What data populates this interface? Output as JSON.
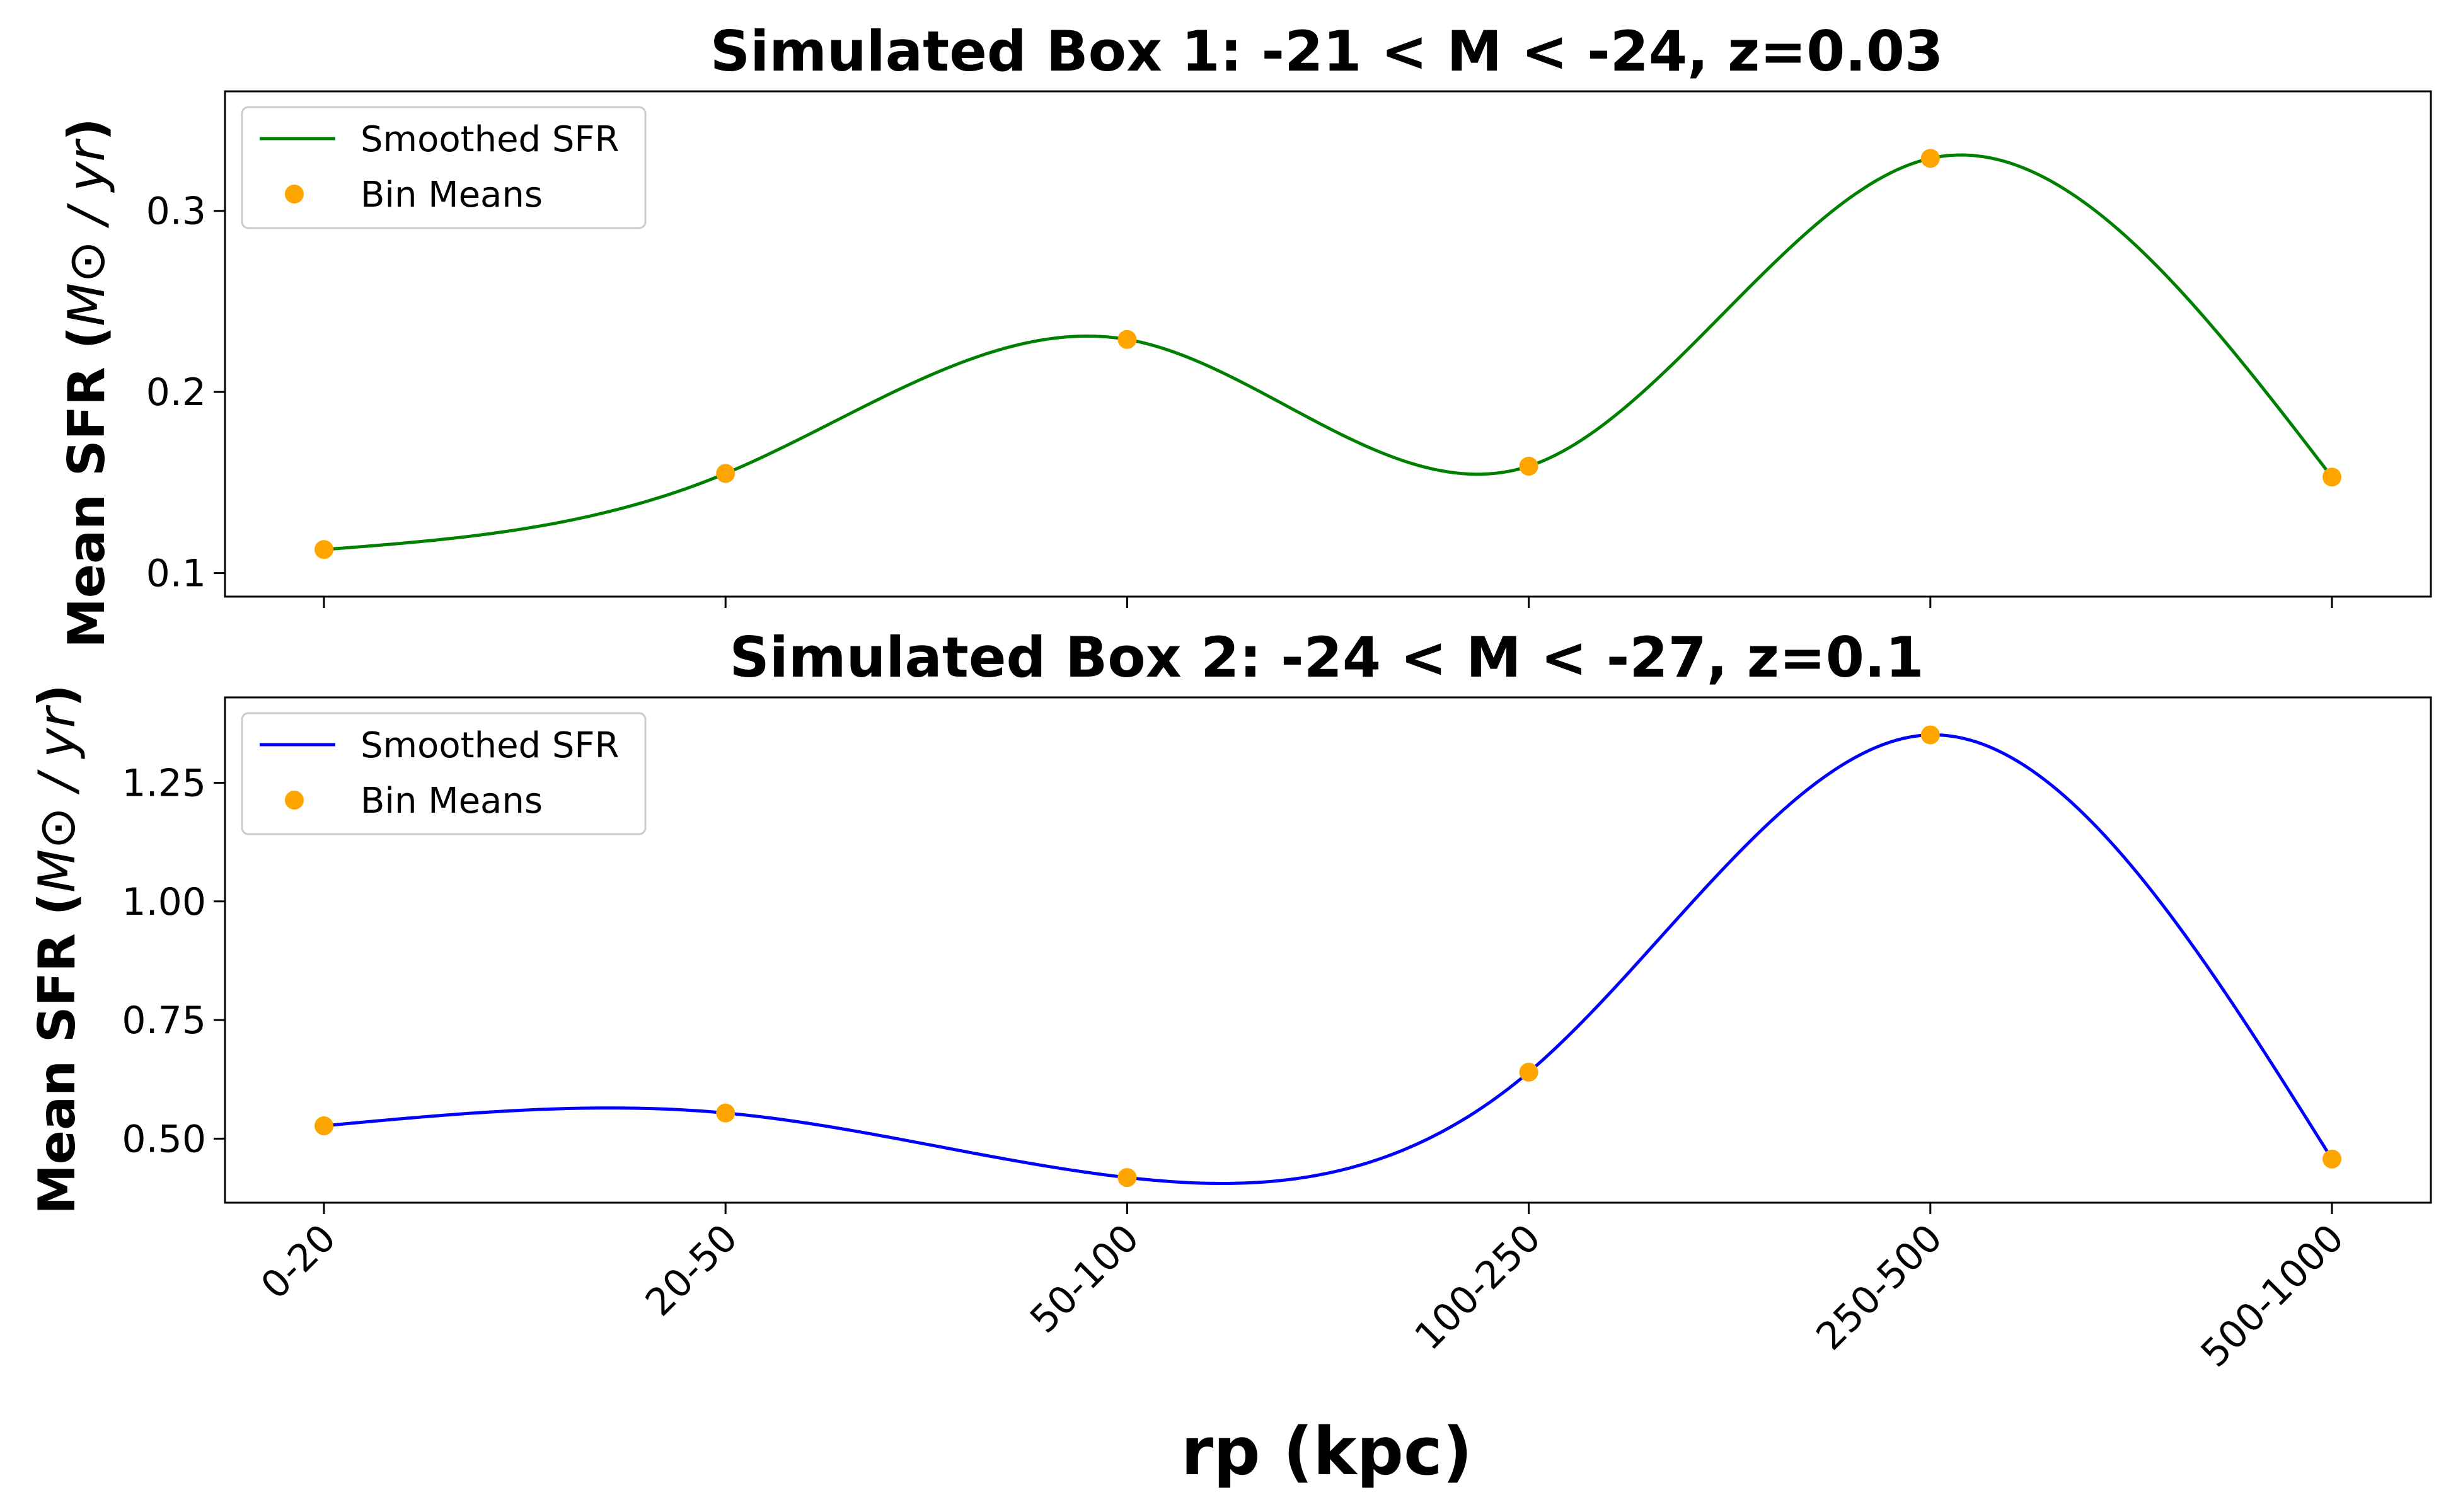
{
  "chart_data": [
    {
      "type": "line",
      "title": "Simulated Box 1: -21 < M < -24, z=0.03",
      "ylabel_text": "Mean SFR (",
      "ylabel_math": "M⊙ / yr",
      "ylabel_close": ")",
      "xlabel": "",
      "categories": [
        "0-20",
        "20-50",
        "50-100",
        "100-250",
        "250-500",
        "500-1000"
      ],
      "x_tick_labels_visible": false,
      "ylim": [
        0.087,
        0.366
      ],
      "y_ticks": [
        0.1,
        0.2,
        0.3
      ],
      "y_tick_labels": [
        "0.1",
        "0.2",
        "0.3"
      ],
      "grid": false,
      "legend_placement": "top-left",
      "series": [
        {
          "name": "Smoothed SFR",
          "kind": "line",
          "color": "#008000",
          "smoothing": "cubic spline through bin means",
          "values": [
            0.113,
            0.155,
            0.229,
            0.159,
            0.329,
            0.153
          ]
        },
        {
          "name": "Bin Means",
          "kind": "scatter",
          "color": "#FFA500",
          "values": [
            0.113,
            0.155,
            0.229,
            0.159,
            0.329,
            0.153
          ]
        }
      ]
    },
    {
      "type": "line",
      "title": "Simulated Box 2: -24 < M < -27, z=0.1",
      "ylabel_text": "Mean SFR (",
      "ylabel_math": "M⊙ / yr",
      "ylabel_close": ")",
      "xlabel": "rp (kpc)",
      "categories": [
        "0-20",
        "20-50",
        "50-100",
        "100-250",
        "250-500",
        "500-1000"
      ],
      "x_tick_labels_visible": true,
      "ylim": [
        0.365,
        1.43
      ],
      "y_ticks": [
        0.5,
        0.75,
        1.0,
        1.25
      ],
      "y_tick_labels": [
        "0.50",
        "0.75",
        "1.00",
        "1.25"
      ],
      "grid": false,
      "legend_placement": "top-left",
      "series": [
        {
          "name": "Smoothed SFR",
          "kind": "line",
          "color": "#0000FF",
          "smoothing": "cubic spline through bin means",
          "values": [
            0.527,
            0.554,
            0.418,
            0.64,
            1.351,
            0.457
          ]
        },
        {
          "name": "Bin Means",
          "kind": "scatter",
          "color": "#FFA500",
          "values": [
            0.527,
            0.554,
            0.418,
            0.64,
            1.351,
            0.457
          ]
        }
      ]
    }
  ]
}
